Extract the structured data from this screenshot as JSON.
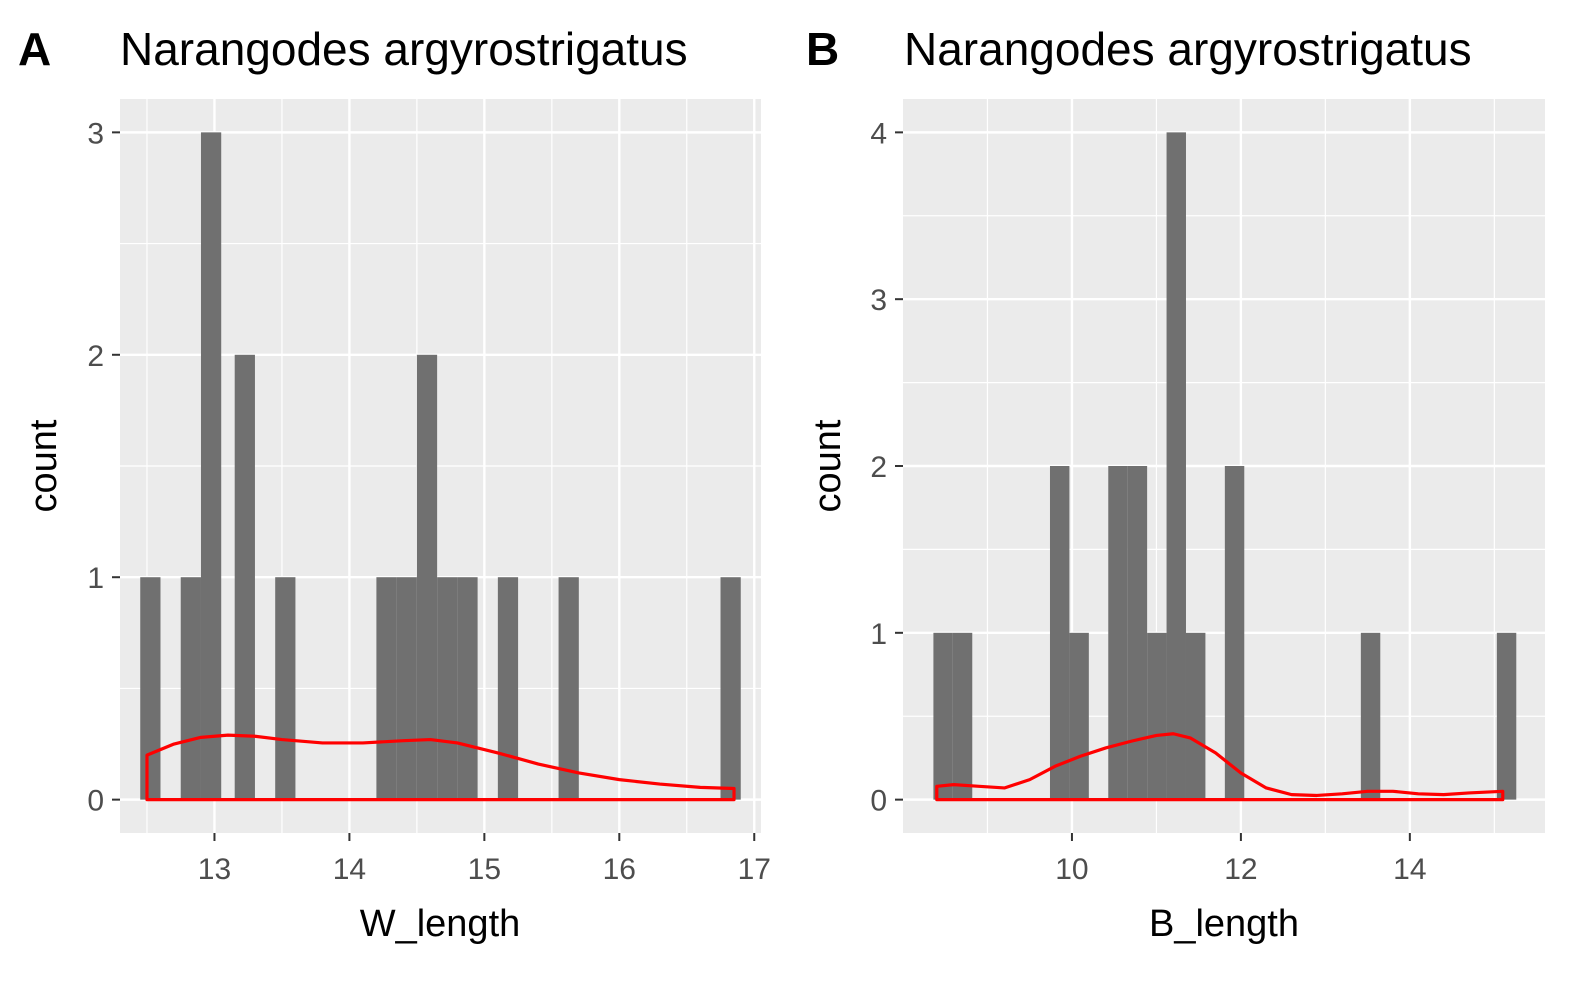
{
  "chart_data": [
    {
      "type": "bar",
      "tag": "A",
      "title": "Narangodes argyrostrigatus",
      "xlabel": "W_length",
      "ylabel": "count",
      "xlim": [
        12.3,
        17.05
      ],
      "ylim": [
        -0.15,
        3.15
      ],
      "xticks": [
        13,
        14,
        15,
        16,
        17
      ],
      "yticks": [
        0,
        1,
        2,
        3
      ],
      "bar_color": "#707070",
      "density_color": "#ff0000",
      "panel_background": "#ebebeb",
      "grid": true,
      "histogram": {
        "bin_width": 0.15,
        "bins": [
          {
            "x0": 12.45,
            "x1": 12.6,
            "count": 1
          },
          {
            "x0": 12.75,
            "x1": 12.9,
            "count": 1
          },
          {
            "x0": 12.9,
            "x1": 13.05,
            "count": 3
          },
          {
            "x0": 13.15,
            "x1": 13.3,
            "count": 2
          },
          {
            "x0": 13.45,
            "x1": 13.6,
            "count": 1
          },
          {
            "x0": 14.2,
            "x1": 14.35,
            "count": 1
          },
          {
            "x0": 14.35,
            "x1": 14.5,
            "count": 1
          },
          {
            "x0": 14.5,
            "x1": 14.65,
            "count": 2
          },
          {
            "x0": 14.65,
            "x1": 14.8,
            "count": 1
          },
          {
            "x0": 14.8,
            "x1": 14.95,
            "count": 1
          },
          {
            "x0": 15.1,
            "x1": 15.25,
            "count": 1
          },
          {
            "x0": 15.55,
            "x1": 15.7,
            "count": 1
          },
          {
            "x0": 16.75,
            "x1": 16.9,
            "count": 1
          }
        ]
      },
      "density": {
        "x": [
          12.5,
          12.7,
          12.9,
          13.1,
          13.3,
          13.5,
          13.8,
          14.1,
          14.4,
          14.6,
          14.8,
          15.1,
          15.4,
          15.7,
          16.0,
          16.3,
          16.6,
          16.85
        ],
        "y": [
          0.2,
          0.25,
          0.28,
          0.29,
          0.285,
          0.27,
          0.255,
          0.255,
          0.265,
          0.27,
          0.255,
          0.21,
          0.16,
          0.12,
          0.09,
          0.07,
          0.055,
          0.05
        ]
      }
    },
    {
      "type": "bar",
      "tag": "B",
      "title": "Narangodes argyrostrigatus",
      "xlabel": "B_length",
      "ylabel": "count",
      "xlim": [
        8.0,
        15.6
      ],
      "ylim": [
        -0.2,
        4.2
      ],
      "xticks": [
        10,
        12,
        14
      ],
      "yticks": [
        0,
        1,
        2,
        3,
        4
      ],
      "bar_color": "#707070",
      "density_color": "#ff0000",
      "panel_background": "#ebebeb",
      "grid": true,
      "histogram": {
        "bin_width": 0.23,
        "bins": [
          {
            "x0": 8.36,
            "x1": 8.59,
            "count": 1
          },
          {
            "x0": 8.59,
            "x1": 8.82,
            "count": 1
          },
          {
            "x0": 9.74,
            "x1": 9.97,
            "count": 2
          },
          {
            "x0": 9.97,
            "x1": 10.2,
            "count": 1
          },
          {
            "x0": 10.43,
            "x1": 10.66,
            "count": 2
          },
          {
            "x0": 10.66,
            "x1": 10.89,
            "count": 2
          },
          {
            "x0": 10.89,
            "x1": 11.12,
            "count": 1
          },
          {
            "x0": 11.12,
            "x1": 11.35,
            "count": 4
          },
          {
            "x0": 11.35,
            "x1": 11.58,
            "count": 1
          },
          {
            "x0": 11.81,
            "x1": 12.04,
            "count": 2
          },
          {
            "x0": 13.42,
            "x1": 13.65,
            "count": 1
          },
          {
            "x0": 15.03,
            "x1": 15.26,
            "count": 1
          }
        ]
      },
      "density": {
        "x": [
          8.4,
          8.6,
          8.9,
          9.2,
          9.5,
          9.8,
          10.1,
          10.4,
          10.7,
          11.0,
          11.2,
          11.4,
          11.7,
          12.0,
          12.3,
          12.6,
          12.9,
          13.2,
          13.5,
          13.8,
          14.1,
          14.4,
          14.7,
          15.1
        ],
        "y": [
          0.08,
          0.09,
          0.08,
          0.07,
          0.12,
          0.2,
          0.26,
          0.31,
          0.35,
          0.385,
          0.395,
          0.37,
          0.28,
          0.16,
          0.07,
          0.03,
          0.025,
          0.035,
          0.05,
          0.05,
          0.035,
          0.03,
          0.04,
          0.05
        ]
      }
    }
  ]
}
